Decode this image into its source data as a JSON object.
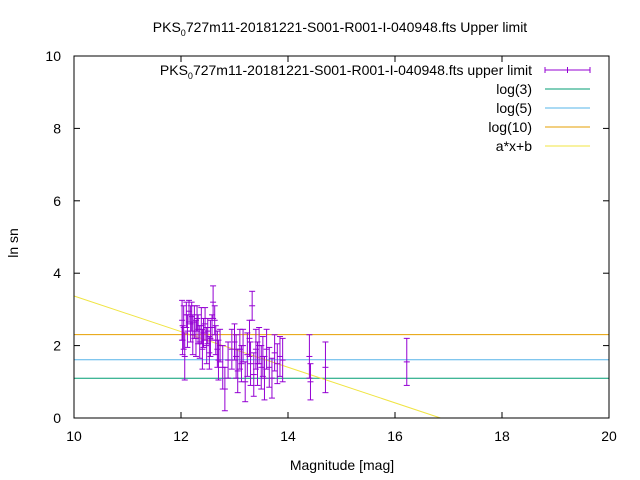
{
  "chart_data": {
    "type": "scatter",
    "title": {
      "prefix": "PKS",
      "sub": "0",
      "rest": "727m11-20181221-S001-R001-I-040948.fts Upper limit"
    },
    "xlabel": "Magnitude [mag]",
    "ylabel": "ln sn",
    "xlim": [
      10,
      20
    ],
    "ylim": [
      0,
      10
    ],
    "xticks": [
      "10",
      "12",
      "14",
      "16",
      "18",
      "20"
    ],
    "yticks": [
      "0",
      "2",
      "4",
      "6",
      "8",
      "10"
    ],
    "grid": false,
    "legend_position": "top-right",
    "legend": [
      {
        "prefix": "PKS",
        "sub": "0",
        "rest": "727m11-20181221-S001-R001-I-040948.fts upper limit",
        "kind": "errorbar",
        "color": "#9400d3"
      },
      {
        "label": "log(3)",
        "kind": "line",
        "color": "#009e73"
      },
      {
        "label": "log(5)",
        "kind": "line",
        "color": "#56b4e9"
      },
      {
        "label": "log(10)",
        "kind": "line",
        "color": "#e69f00"
      },
      {
        "label": "a*x+b",
        "kind": "line",
        "color": "#f0e442"
      }
    ],
    "hlines": [
      {
        "y": 1.0986,
        "color": "#009e73"
      },
      {
        "y": 1.6094,
        "color": "#56b4e9"
      },
      {
        "y": 2.3026,
        "color": "#e69f00"
      }
    ],
    "fit_line": {
      "x": [
        10,
        16.85
      ],
      "y": [
        3.37,
        0.0
      ],
      "color": "#f0e442"
    },
    "points": [
      {
        "x": 12.02,
        "y": 2.7,
        "e": 0.55
      },
      {
        "x": 12.03,
        "y": 2.15,
        "e": 0.4
      },
      {
        "x": 12.05,
        "y": 2.5,
        "e": 0.6
      },
      {
        "x": 12.07,
        "y": 1.7,
        "e": 0.65
      },
      {
        "x": 12.1,
        "y": 2.85,
        "e": 0.35
      },
      {
        "x": 12.12,
        "y": 2.4,
        "e": 0.45
      },
      {
        "x": 12.15,
        "y": 2.95,
        "e": 0.3
      },
      {
        "x": 12.18,
        "y": 2.6,
        "e": 0.5
      },
      {
        "x": 12.2,
        "y": 2.8,
        "e": 0.4
      },
      {
        "x": 12.22,
        "y": 2.3,
        "e": 0.55
      },
      {
        "x": 12.25,
        "y": 2.65,
        "e": 0.45
      },
      {
        "x": 12.28,
        "y": 2.2,
        "e": 0.5
      },
      {
        "x": 12.3,
        "y": 2.75,
        "e": 0.35
      },
      {
        "x": 12.32,
        "y": 2.45,
        "e": 0.4
      },
      {
        "x": 12.35,
        "y": 2.1,
        "e": 0.45
      },
      {
        "x": 12.38,
        "y": 2.55,
        "e": 0.5
      },
      {
        "x": 12.4,
        "y": 1.9,
        "e": 0.55
      },
      {
        "x": 12.42,
        "y": 2.35,
        "e": 0.4
      },
      {
        "x": 12.45,
        "y": 2.6,
        "e": 0.45
      },
      {
        "x": 12.48,
        "y": 2.0,
        "e": 0.5
      },
      {
        "x": 12.5,
        "y": 2.4,
        "e": 0.35
      },
      {
        "x": 12.53,
        "y": 1.8,
        "e": 0.45
      },
      {
        "x": 12.55,
        "y": 2.2,
        "e": 0.5
      },
      {
        "x": 12.58,
        "y": 2.5,
        "e": 0.35
      },
      {
        "x": 12.6,
        "y": 3.2,
        "e": 0.45
      },
      {
        "x": 12.63,
        "y": 2.7,
        "e": 0.4
      },
      {
        "x": 12.65,
        "y": 2.15,
        "e": 0.4
      },
      {
        "x": 12.68,
        "y": 1.9,
        "e": 0.5
      },
      {
        "x": 12.7,
        "y": 1.6,
        "e": 0.55
      },
      {
        "x": 12.73,
        "y": 2.0,
        "e": 0.45
      },
      {
        "x": 12.78,
        "y": 1.4,
        "e": 0.6
      },
      {
        "x": 12.82,
        "y": 0.8,
        "e": 0.6
      },
      {
        "x": 12.88,
        "y": 1.6,
        "e": 0.5
      },
      {
        "x": 12.95,
        "y": 1.9,
        "e": 0.55
      },
      {
        "x": 13.0,
        "y": 2.1,
        "e": 0.5
      },
      {
        "x": 13.03,
        "y": 1.7,
        "e": 0.6
      },
      {
        "x": 13.06,
        "y": 1.3,
        "e": 0.6
      },
      {
        "x": 13.1,
        "y": 1.9,
        "e": 0.55
      },
      {
        "x": 13.13,
        "y": 1.5,
        "e": 0.5
      },
      {
        "x": 13.16,
        "y": 2.0,
        "e": 0.45
      },
      {
        "x": 13.2,
        "y": 1.0,
        "e": 0.55
      },
      {
        "x": 13.24,
        "y": 1.75,
        "e": 0.6
      },
      {
        "x": 13.28,
        "y": 2.2,
        "e": 0.5
      },
      {
        "x": 13.3,
        "y": 1.5,
        "e": 0.6
      },
      {
        "x": 13.33,
        "y": 3.1,
        "e": 0.4
      },
      {
        "x": 13.36,
        "y": 1.2,
        "e": 0.6
      },
      {
        "x": 13.4,
        "y": 1.9,
        "e": 0.55
      },
      {
        "x": 13.43,
        "y": 1.5,
        "e": 0.6
      },
      {
        "x": 13.46,
        "y": 2.0,
        "e": 0.5
      },
      {
        "x": 13.5,
        "y": 1.4,
        "e": 0.6
      },
      {
        "x": 13.53,
        "y": 1.7,
        "e": 0.55
      },
      {
        "x": 13.56,
        "y": 1.1,
        "e": 0.6
      },
      {
        "x": 13.6,
        "y": 1.9,
        "e": 0.55
      },
      {
        "x": 13.65,
        "y": 1.4,
        "e": 0.55
      },
      {
        "x": 13.7,
        "y": 1.1,
        "e": 0.55
      },
      {
        "x": 13.75,
        "y": 1.8,
        "e": 0.5
      },
      {
        "x": 13.8,
        "y": 1.5,
        "e": 0.55
      },
      {
        "x": 13.85,
        "y": 1.7,
        "e": 0.55
      },
      {
        "x": 13.9,
        "y": 1.6,
        "e": 0.6
      },
      {
        "x": 14.4,
        "y": 1.7,
        "e": 0.6
      },
      {
        "x": 14.42,
        "y": 1.0,
        "e": 0.5
      },
      {
        "x": 14.7,
        "y": 1.4,
        "e": 0.7
      },
      {
        "x": 16.22,
        "y": 1.55,
        "e": 0.65
      }
    ]
  }
}
